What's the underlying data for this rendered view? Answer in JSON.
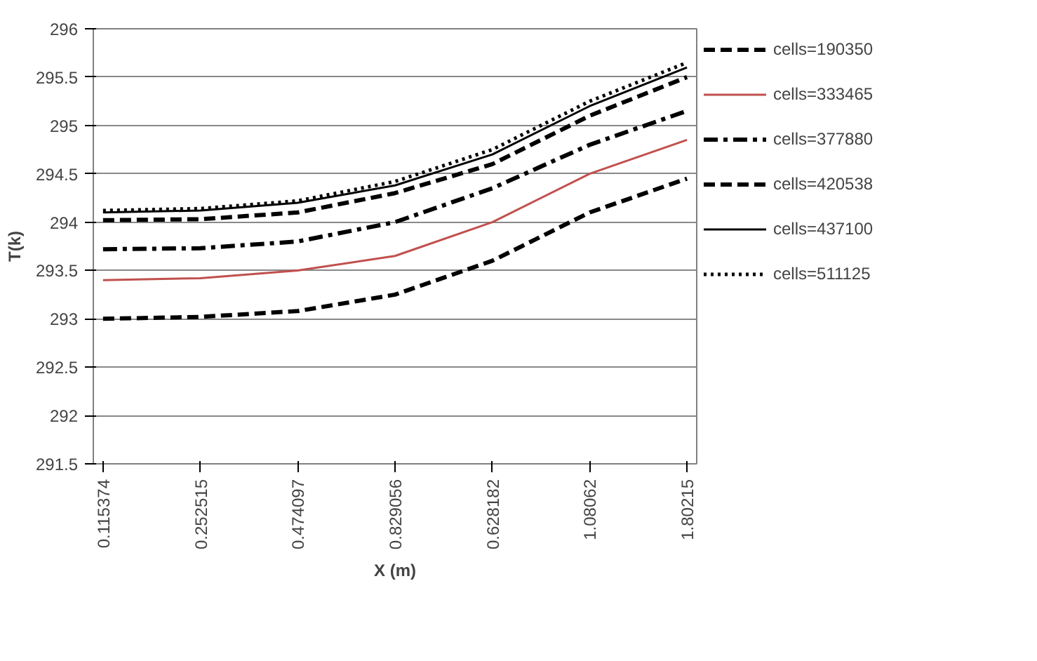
{
  "chart_data": {
    "type": "line",
    "xlabel": "X (m)",
    "ylabel": "T(k)",
    "categories": [
      "0.115374",
      "0.252515",
      "0.474097",
      "0.829056",
      "0.628182",
      "1.08062",
      "1.80215"
    ],
    "ylim": [
      291.5,
      296
    ],
    "yticks": [
      291.5,
      292,
      292.5,
      293,
      293.5,
      294,
      294.5,
      295,
      295.5,
      296
    ],
    "grid": "y",
    "legend": "right",
    "marker": "none",
    "series": [
      {
        "name": "cells=190350",
        "color": "#000000",
        "line_style": "dashed",
        "values": [
          293.0,
          293.02,
          293.08,
          293.25,
          293.6,
          294.1,
          294.45
        ]
      },
      {
        "name": "cells=333465",
        "color": "#c0504d",
        "line_style": "solid",
        "values": [
          293.4,
          293.42,
          293.5,
          293.65,
          294.0,
          294.5,
          294.85
        ]
      },
      {
        "name": "cells=377880",
        "color": "#000000",
        "line_style": "dashdot",
        "values": [
          293.72,
          293.73,
          293.8,
          294.0,
          294.35,
          294.8,
          295.15
        ]
      },
      {
        "name": "cells=420538",
        "color": "#000000",
        "line_style": "dashed",
        "values": [
          294.02,
          294.03,
          294.1,
          294.3,
          294.6,
          295.1,
          295.5
        ]
      },
      {
        "name": "cells=437100",
        "color": "#000000",
        "line_style": "solid",
        "values": [
          294.1,
          294.12,
          294.2,
          294.38,
          294.7,
          295.2,
          295.6
        ]
      },
      {
        "name": "cells=511125",
        "color": "#000000",
        "line_style": "dotted",
        "values": [
          294.12,
          294.14,
          294.22,
          294.42,
          294.75,
          295.25,
          295.65
        ]
      }
    ]
  }
}
